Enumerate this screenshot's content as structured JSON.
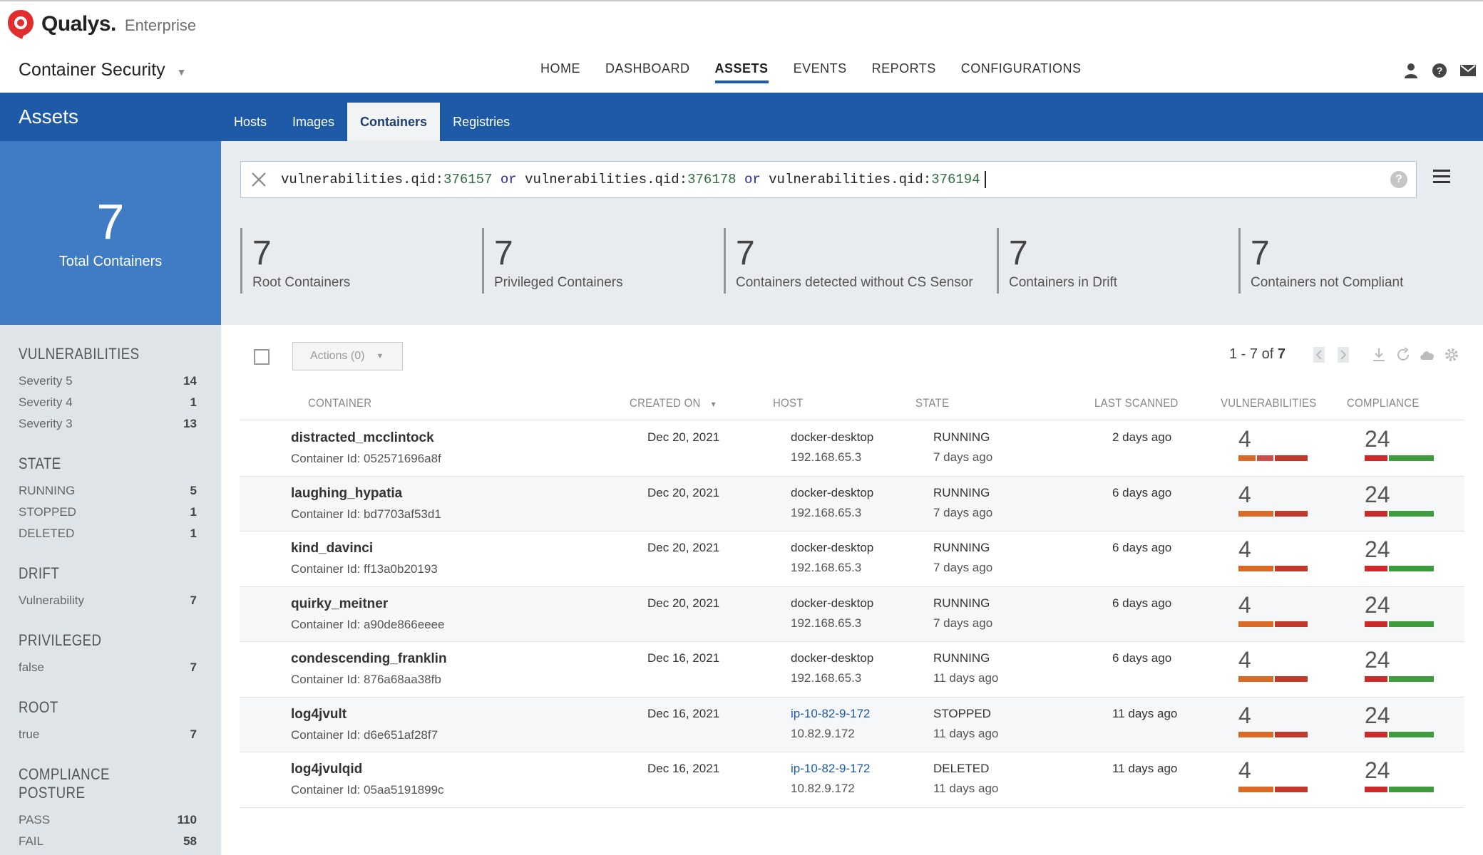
{
  "brand": {
    "name": "Qualys.",
    "edition": "Enterprise"
  },
  "module": {
    "name": "Container Security"
  },
  "nav": [
    "HOME",
    "DASHBOARD",
    "ASSETS",
    "EVENTS",
    "REPORTS",
    "CONFIGURATIONS"
  ],
  "page": {
    "title": "Assets",
    "tabs": [
      "Hosts",
      "Images",
      "Containers",
      "Registries"
    ],
    "active_tab": "Containers"
  },
  "search": {
    "parts": [
      {
        "t": "vulnerabilities.qid:",
        "c": "k"
      },
      {
        "t": "376157",
        "c": "n"
      },
      {
        "t": " or ",
        "c": "o"
      },
      {
        "t": "vulnerabilities.qid:",
        "c": "k"
      },
      {
        "t": "376178",
        "c": "n"
      },
      {
        "t": " or ",
        "c": "o"
      },
      {
        "t": "vulnerabilities.qid:",
        "c": "k"
      },
      {
        "t": "376194",
        "c": "n"
      }
    ]
  },
  "total": {
    "value": "7",
    "label": "Total Containers"
  },
  "cards": [
    {
      "value": "7",
      "label": "Root Containers"
    },
    {
      "value": "7",
      "label": "Privileged Containers"
    },
    {
      "value": "7",
      "label": "Containers detected without CS Sensor"
    },
    {
      "value": "7",
      "label": "Containers in Drift"
    },
    {
      "value": "7",
      "label": "Containers not Compliant"
    }
  ],
  "filters": [
    {
      "title": "VULNERABILITIES",
      "items": [
        {
          "label": "Severity 5",
          "count": "14"
        },
        {
          "label": "Severity 4",
          "count": "1"
        },
        {
          "label": "Severity 3",
          "count": "13"
        }
      ]
    },
    {
      "title": "STATE",
      "items": [
        {
          "label": "RUNNING",
          "count": "5"
        },
        {
          "label": "STOPPED",
          "count": "1"
        },
        {
          "label": "DELETED",
          "count": "1"
        }
      ]
    },
    {
      "title": "DRIFT",
      "items": [
        {
          "label": "Vulnerability",
          "count": "7"
        }
      ]
    },
    {
      "title": "PRIVILEGED",
      "items": [
        {
          "label": "false",
          "count": "7"
        }
      ]
    },
    {
      "title": "ROOT",
      "items": [
        {
          "label": "true",
          "count": "7"
        }
      ]
    },
    {
      "title": "COMPLIANCE POSTURE",
      "items": [
        {
          "label": "PASS",
          "count": "110"
        },
        {
          "label": "FAIL",
          "count": "58"
        }
      ]
    }
  ],
  "toolbar": {
    "actions_label": "Actions (0)",
    "range": "1 - 7 of",
    "total": "7"
  },
  "columns": [
    "CONTAINER",
    "CREATED ON",
    "HOST",
    "STATE",
    "LAST SCANNED",
    "VULNERABILITIES",
    "COMPLIANCE"
  ],
  "colors": {
    "sev_orange": "#d96b27",
    "sev_red": "#c0392b",
    "sev_mid": "#c9504a",
    "pass_green": "#3e9b3e",
    "fail_red": "#cc2b2b",
    "link": "#1e5aa8"
  },
  "rows": [
    {
      "name": "distracted_mcclintock",
      "id": "Container Id: 052571696a8f",
      "created": "Dec 20, 2021",
      "host": "docker-desktop",
      "ip": "192.168.65.3",
      "host_link": false,
      "state": "RUNNING",
      "state_age": "7 days ago",
      "scanned": "2 days ago",
      "vulns": "4",
      "vuln_bar": [
        1,
        1,
        2
      ],
      "compliance": "24",
      "comp_bar": [
        1,
        2
      ]
    },
    {
      "name": "laughing_hypatia",
      "id": "Container Id: bd7703af53d1",
      "created": "Dec 20, 2021",
      "host": "docker-desktop",
      "ip": "192.168.65.3",
      "host_link": false,
      "state": "RUNNING",
      "state_age": "7 days ago",
      "scanned": "6 days ago",
      "vulns": "4",
      "vuln_bar": [
        2,
        0,
        2
      ],
      "compliance": "24",
      "comp_bar": [
        1,
        2
      ]
    },
    {
      "name": "kind_davinci",
      "id": "Container Id: ff13a0b20193",
      "created": "Dec 20, 2021",
      "host": "docker-desktop",
      "ip": "192.168.65.3",
      "host_link": false,
      "state": "RUNNING",
      "state_age": "7 days ago",
      "scanned": "6 days ago",
      "vulns": "4",
      "vuln_bar": [
        2,
        0,
        2
      ],
      "compliance": "24",
      "comp_bar": [
        1,
        2
      ]
    },
    {
      "name": "quirky_meitner",
      "id": "Container Id: a90de866eeee",
      "created": "Dec 20, 2021",
      "host": "docker-desktop",
      "ip": "192.168.65.3",
      "host_link": false,
      "state": "RUNNING",
      "state_age": "7 days ago",
      "scanned": "6 days ago",
      "vulns": "4",
      "vuln_bar": [
        2,
        0,
        2
      ],
      "compliance": "24",
      "comp_bar": [
        1,
        2
      ]
    },
    {
      "name": "condescending_franklin",
      "id": "Container Id: 876a68aa38fb",
      "created": "Dec 16, 2021",
      "host": "docker-desktop",
      "ip": "192.168.65.3",
      "host_link": false,
      "state": "RUNNING",
      "state_age": "11 days ago",
      "scanned": "6 days ago",
      "vulns": "4",
      "vuln_bar": [
        2,
        0,
        2
      ],
      "compliance": "24",
      "comp_bar": [
        1,
        2
      ]
    },
    {
      "name": "log4jvult",
      "id": "Container Id: d6e651af28f7",
      "created": "Dec 16, 2021",
      "host": "ip-10-82-9-172",
      "ip": "10.82.9.172",
      "host_link": true,
      "state": "STOPPED",
      "state_age": "11 days ago",
      "scanned": "11 days ago",
      "vulns": "4",
      "vuln_bar": [
        2,
        0,
        2
      ],
      "compliance": "24",
      "comp_bar": [
        1,
        2
      ]
    },
    {
      "name": "log4jvulqid",
      "id": "Container Id: 05aa5191899c",
      "created": "Dec 16, 2021",
      "host": "ip-10-82-9-172",
      "ip": "10.82.9.172",
      "host_link": true,
      "state": "DELETED",
      "state_age": "11 days ago",
      "scanned": "11 days ago",
      "vulns": "4",
      "vuln_bar": [
        2,
        0,
        2
      ],
      "compliance": "24",
      "comp_bar": [
        1,
        2
      ]
    }
  ]
}
